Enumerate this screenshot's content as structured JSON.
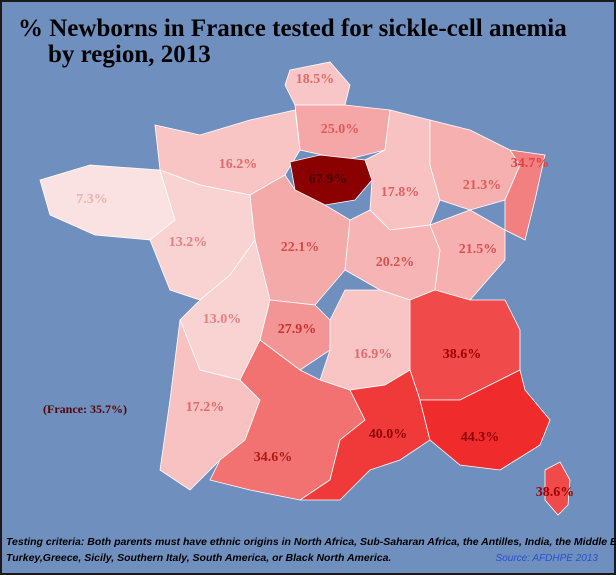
{
  "title_lines": [
    "% Newborns in France tested for sickle-cell anemia",
    "by region, 2013"
  ],
  "annotation": "(France: 35.7%)",
  "regions": [
    {
      "label": "18.5%",
      "color": "#f8c6c6"
    },
    {
      "label": "25.0%",
      "color": "#f5a6a6"
    },
    {
      "label": "16.2%",
      "color": "#f8c4c4"
    },
    {
      "label": "67.9%",
      "color": "#8b0000"
    },
    {
      "label": "17.8%",
      "color": "#f8c2c2"
    },
    {
      "label": "21.3%",
      "color": "#f6b0b0"
    },
    {
      "label": "34.7%",
      "color": "#f28080"
    },
    {
      "label": "7.3%",
      "color": "#fbe2e2"
    },
    {
      "label": "13.2%",
      "color": "#f9d2d2"
    },
    {
      "label": "22.1%",
      "color": "#f5aaaa"
    },
    {
      "label": "20.2%",
      "color": "#f6b4b4"
    },
    {
      "label": "21.5%",
      "color": "#f6b0b0"
    },
    {
      "label": "13.0%",
      "color": "#f9d2d2"
    },
    {
      "label": "27.9%",
      "color": "#f39595"
    },
    {
      "label": "16.9%",
      "color": "#f8c4c4"
    },
    {
      "label": "38.6%",
      "color": "#f04a4a"
    },
    {
      "label": "17.2%",
      "color": "#f8c2c2"
    },
    {
      "label": "34.6%",
      "color": "#f27272"
    },
    {
      "label": "40.0%",
      "color": "#f03a3a"
    },
    {
      "label": "44.3%",
      "color": "#ef2b2b"
    },
    {
      "label": "38.6%",
      "color": "#f04a4a"
    }
  ],
  "footer": {
    "criteria_lines": [
      "Testing criteria: Both parents must have ethnic origins in North Africa, Sub-Saharan Africa, the Antilles, India, the Middle East,",
      "Turkey,Greece, Sicily, Southern Italy, South America, or Black North America."
    ],
    "source": "Source: AFDHPE 2013"
  }
}
